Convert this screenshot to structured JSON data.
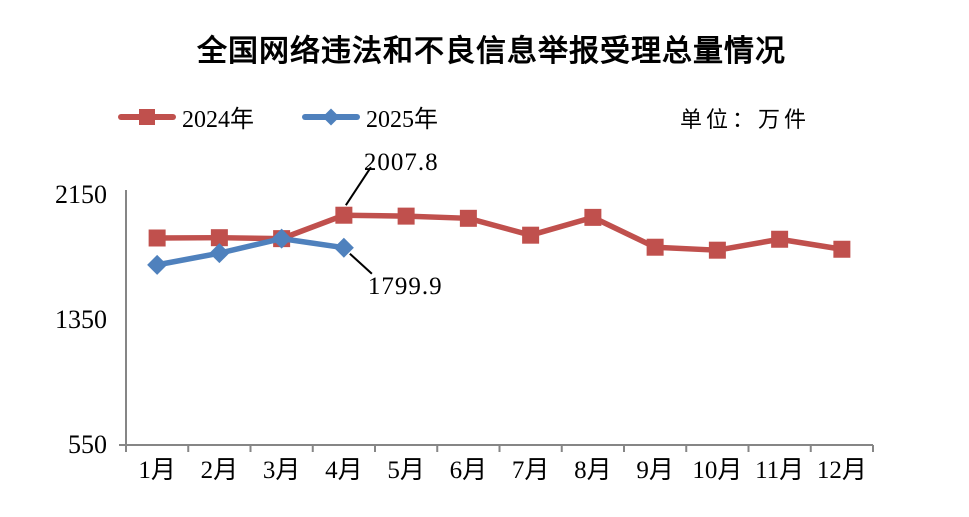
{
  "title": "全国网络违法和不良信息举报受理总量情况",
  "unit_label": "单位：万件",
  "legend": [
    {
      "label": "2024年",
      "color": "#C0504D",
      "marker": "square"
    },
    {
      "label": "2025年",
      "color": "#4F81BD",
      "marker": "diamond"
    }
  ],
  "chart_data": {
    "type": "line",
    "title": "全国网络违法和不良信息举报受理总量情况",
    "unit": "万件",
    "categories": [
      "1月",
      "2月",
      "3月",
      "4月",
      "5月",
      "6月",
      "7月",
      "8月",
      "9月",
      "10月",
      "11月",
      "12月"
    ],
    "series": [
      {
        "name": "2024年",
        "color": "#C0504D",
        "marker": "square",
        "values": [
          1862,
          1864,
          1858,
          2007.8,
          2002,
          1988,
          1880,
          1994,
          1803,
          1784,
          1854,
          1790
        ]
      },
      {
        "name": "2025年",
        "color": "#4F81BD",
        "marker": "diamond",
        "values": [
          1690,
          1765,
          1858,
          1799.9
        ]
      }
    ],
    "ylim": [
      550,
      2150
    ],
    "yticks": [
      550,
      1350,
      2150
    ],
    "grid": false,
    "legend_position": "top-left",
    "axis_color": "#868686",
    "annotations": [
      {
        "text": "2007.8",
        "series": "2024年",
        "category": "4月",
        "value": 2007.8,
        "position": "above"
      },
      {
        "text": "1799.9",
        "series": "2025年",
        "category": "4月",
        "value": 1799.9,
        "position": "below"
      }
    ]
  }
}
